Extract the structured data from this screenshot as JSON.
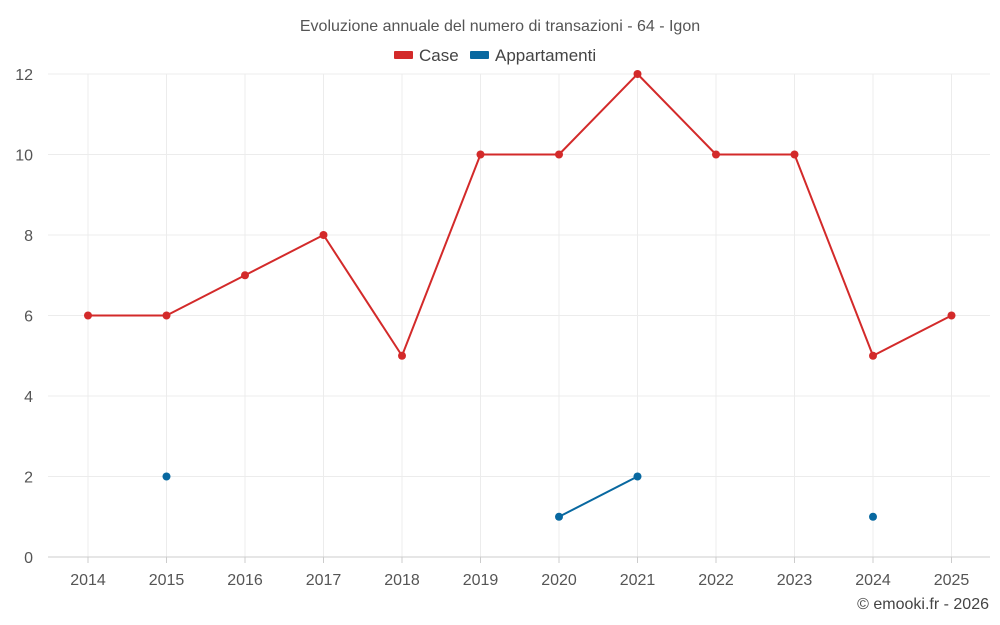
{
  "chart_data": {
    "type": "line",
    "title": "Evoluzione annuale del numero di transazioni - 64 - Igon",
    "categories": [
      "2014",
      "2015",
      "2016",
      "2017",
      "2018",
      "2019",
      "2020",
      "2021",
      "2022",
      "2023",
      "2024",
      "2025"
    ],
    "series": [
      {
        "name": "Case",
        "color": "#d32a2a",
        "values": [
          6,
          6,
          7,
          8,
          5,
          10,
          10,
          12,
          10,
          10,
          5,
          6
        ]
      },
      {
        "name": "Appartamenti",
        "color": "#0868a0",
        "values": [
          null,
          2,
          null,
          null,
          null,
          null,
          1,
          2,
          null,
          null,
          1,
          null
        ]
      }
    ],
    "ylim": [
      0,
      12
    ],
    "yticks": [
      0,
      2,
      4,
      6,
      8,
      10,
      12
    ],
    "xlabel": "",
    "ylabel": "",
    "grid": true,
    "legend": "top-center"
  },
  "credit": "© emooki.fr - 2026"
}
